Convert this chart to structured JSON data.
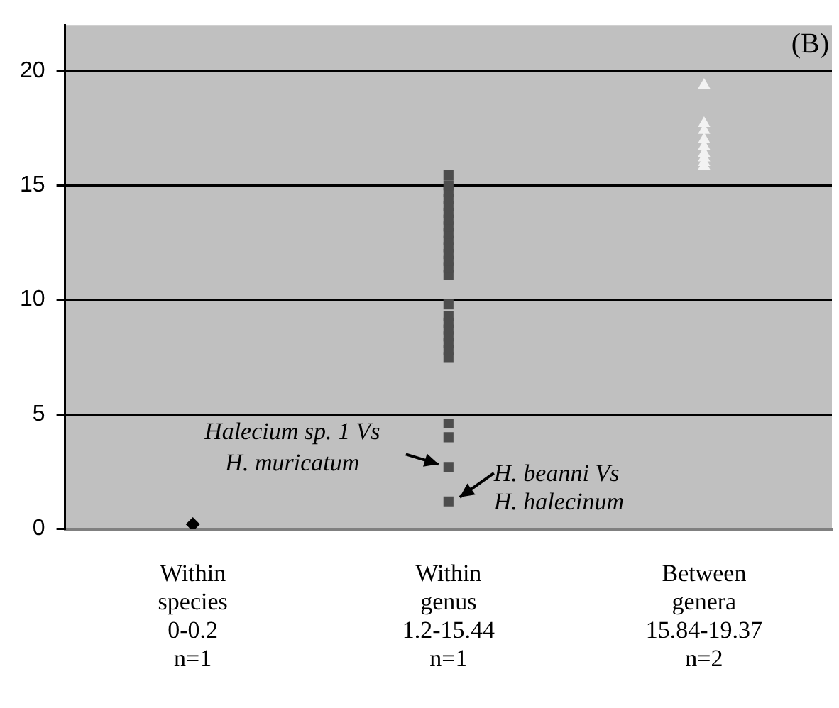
{
  "chart_data": {
    "type": "scatter",
    "categories": [
      "Within\nspecies\n0-0.2\nn=1",
      "Within\ngenus\n1.2-15.44\nn=1",
      "Between\ngenera\n15.84-19.37\nn=2"
    ],
    "series": [
      {
        "color": "#000000",
        "marker": "diamond",
        "x": [
          "Within\nspecies\n0-0.2\nn=1"
        ],
        "values": [
          0.2
        ]
      },
      {
        "color": "#4d4d4d",
        "marker": "square",
        "x": [
          "Within\ngenus\n1.2-15.44\nn=1",
          "Within\ngenus\n1.2-15.44\nn=1",
          "Within\ngenus\n1.2-15.44\nn=1",
          "Within\ngenus\n1.2-15.44\nn=1",
          "Within\ngenus\n1.2-15.44\nn=1",
          "Within\ngenus\n1.2-15.44\nn=1",
          "Within\ngenus\n1.2-15.44\nn=1",
          "Within\ngenus\n1.2-15.44\nn=1",
          "Within\ngenus\n1.2-15.44\nn=1",
          "Within\ngenus\n1.2-15.44\nn=1",
          "Within\ngenus\n1.2-15.44\nn=1",
          "Within\ngenus\n1.2-15.44\nn=1",
          "Within\ngenus\n1.2-15.44\nn=1",
          "Within\ngenus\n1.2-15.44\nn=1",
          "Within\ngenus\n1.2-15.44\nn=1",
          "Within\ngenus\n1.2-15.44\nn=1",
          "Within\ngenus\n1.2-15.44\nn=1",
          "Within\ngenus\n1.2-15.44\nn=1",
          "Within\ngenus\n1.2-15.44\nn=1",
          "Within\ngenus\n1.2-15.44\nn=1",
          "Within\ngenus\n1.2-15.44\nn=1",
          "Within\ngenus\n1.2-15.44\nn=1",
          "Within\ngenus\n1.2-15.44\nn=1",
          "Within\ngenus\n1.2-15.44\nn=1",
          "Within\ngenus\n1.2-15.44\nn=1",
          "Within\ngenus\n1.2-15.44\nn=1",
          "Within\ngenus\n1.2-15.44\nn=1"
        ],
        "values": [
          1.2,
          2.7,
          4.0,
          4.6,
          7.5,
          7.8,
          8.1,
          8.4,
          8.7,
          9.0,
          9.3,
          9.8,
          11.1,
          11.4,
          11.7,
          12.0,
          12.3,
          12.6,
          12.9,
          13.2,
          13.5,
          13.8,
          14.1,
          14.4,
          14.7,
          15.0,
          15.44
        ]
      },
      {
        "color": "#f2f2f2",
        "marker": "triangle",
        "x": [
          "Between\ngenera\n15.84-19.37\nn=2",
          "Between\ngenera\n15.84-19.37\nn=2",
          "Between\ngenera\n15.84-19.37\nn=2",
          "Between\ngenera\n15.84-19.37\nn=2",
          "Between\ngenera\n15.84-19.37\nn=2",
          "Between\ngenera\n15.84-19.37\nn=2",
          "Between\ngenera\n15.84-19.37\nn=2",
          "Between\ngenera\n15.84-19.37\nn=2",
          "Between\ngenera\n15.84-19.37\nn=2"
        ],
        "values": [
          15.84,
          16.0,
          16.2,
          16.4,
          16.7,
          17.0,
          17.4,
          17.7,
          19.37
        ]
      }
    ],
    "ylim": [
      0,
      22
    ],
    "yticks": [
      0,
      5,
      10,
      15,
      20
    ],
    "grid": "y",
    "legend": false,
    "annotations": [
      "(B)",
      {
        "text": "Halecium sp. 1 Vs\nH. muricatum",
        "x": "Within\ngenus\n1.2-15.44\nn=1",
        "y": 2.7
      },
      {
        "text": "H. beanni Vs\nH. halecinum",
        "x": "Within\ngenus\n1.2-15.44\nn=1",
        "y": 1.2
      }
    ]
  }
}
